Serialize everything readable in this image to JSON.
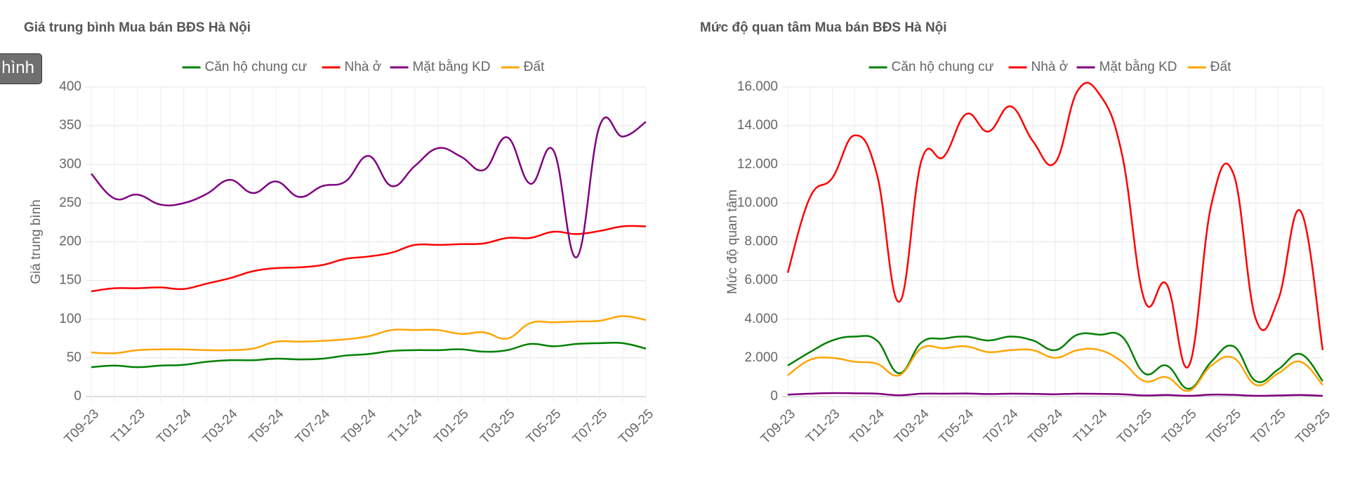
{
  "button": {
    "label": "hình"
  },
  "chart_data": [
    {
      "type": "line",
      "title": "Giá trung bình Mua bán BĐS Hà Nội",
      "y_label": "Giá trung bình",
      "legend": "top",
      "grid": true,
      "categories": [
        "T09-23",
        null,
        "T11-23",
        null,
        "T01-24",
        null,
        "T03-24",
        null,
        "T05-24",
        null,
        "T07-24",
        null,
        "T09-24",
        null,
        "T11-24",
        null,
        "T01-25",
        null,
        "T03-25",
        null,
        "T05-25",
        null,
        "T07-25",
        null,
        "T09-25"
      ],
      "ylim": [
        0,
        400
      ],
      "yticks": [
        0,
        50,
        100,
        150,
        200,
        250,
        300,
        350,
        400
      ],
      "series": [
        {
          "name": "Căn hộ chung cư",
          "color": "#008000",
          "values": [
            38,
            40,
            38,
            40,
            41,
            45,
            47,
            47,
            49,
            48,
            49,
            53,
            55,
            59,
            60,
            60,
            61,
            58,
            60,
            68,
            65,
            68,
            69,
            69,
            62
          ]
        },
        {
          "name": "Nhà ở",
          "color": "#ff0000",
          "values": [
            136,
            140,
            140,
            141,
            139,
            146,
            153,
            162,
            166,
            167,
            170,
            178,
            181,
            186,
            196,
            196,
            197,
            198,
            205,
            205,
            213,
            210,
            214,
            220,
            220
          ]
        },
        {
          "name": "Mặt bằng KD",
          "color": "#800080",
          "values": [
            288,
            256,
            261,
            248,
            250,
            262,
            280,
            263,
            278,
            258,
            272,
            278,
            311,
            272,
            298,
            321,
            310,
            293,
            335,
            275,
            318,
            180,
            350,
            336,
            355
          ]
        },
        {
          "name": "Đất",
          "color": "#ffa500",
          "values": [
            57,
            56,
            60,
            61,
            61,
            60,
            60,
            62,
            71,
            71,
            72,
            74,
            78,
            86,
            86,
            86,
            81,
            83,
            75,
            95,
            96,
            97,
            98,
            104,
            99
          ]
        }
      ]
    },
    {
      "type": "line",
      "title": "Mức độ quan tâm Mua bán BĐS Hà Nội",
      "y_label": "Mức độ quan tâm",
      "legend": "top",
      "grid": true,
      "categories": [
        "T09-23",
        null,
        "T11-23",
        null,
        "T01-24",
        null,
        "T03-24",
        null,
        "T05-24",
        null,
        "T07-24",
        null,
        "T09-24",
        null,
        "T11-24",
        null,
        "T01-25",
        null,
        "T03-25",
        null,
        "T05-25",
        null,
        "T07-25",
        null,
        "T09-25"
      ],
      "ylim": [
        0,
        16000
      ],
      "yticks": [
        0,
        {
          "value": 2000,
          "label": "2.000"
        },
        {
          "value": 4000,
          "label": "4.000"
        },
        {
          "value": 6000,
          "label": "6.000"
        },
        {
          "value": 8000,
          "label": "8.000"
        },
        {
          "value": 10000,
          "label": "10.000"
        },
        {
          "value": 12000,
          "label": "12.000"
        },
        {
          "value": 14000,
          "label": "14.000"
        },
        {
          "value": 16000,
          "label": "16.000"
        }
      ],
      "series": [
        {
          "name": "Căn hộ chung cư",
          "color": "#008000",
          "values": [
            1600,
            2300,
            2900,
            3100,
            2900,
            1200,
            2800,
            3000,
            3100,
            2900,
            3100,
            2900,
            2400,
            3200,
            3200,
            3100,
            1200,
            1600,
            400,
            1800,
            2600,
            800,
            1400,
            2200,
            800
          ]
        },
        {
          "name": "Nhà ở",
          "color": "#ff0000",
          "values": [
            6400,
            10300,
            11300,
            13500,
            11500,
            4900,
            12200,
            12400,
            14600,
            13700,
            15000,
            13200,
            12100,
            15800,
            15600,
            12500,
            5000,
            5800,
            1600,
            9900,
            11500,
            4000,
            5000,
            9600,
            2400
          ]
        },
        {
          "name": "Mặt bằng KD",
          "color": "#800080",
          "values": [
            100,
            150,
            180,
            170,
            150,
            70,
            150,
            150,
            160,
            130,
            150,
            140,
            120,
            150,
            140,
            120,
            60,
            80,
            40,
            100,
            90,
            40,
            60,
            80,
            40
          ]
        },
        {
          "name": "Đất",
          "color": "#ffa500",
          "values": [
            1100,
            1900,
            2000,
            1800,
            1700,
            1100,
            2500,
            2500,
            2600,
            2300,
            2400,
            2400,
            2000,
            2400,
            2400,
            1800,
            800,
            1000,
            300,
            1600,
            2000,
            600,
            1200,
            1800,
            600
          ]
        }
      ]
    }
  ]
}
